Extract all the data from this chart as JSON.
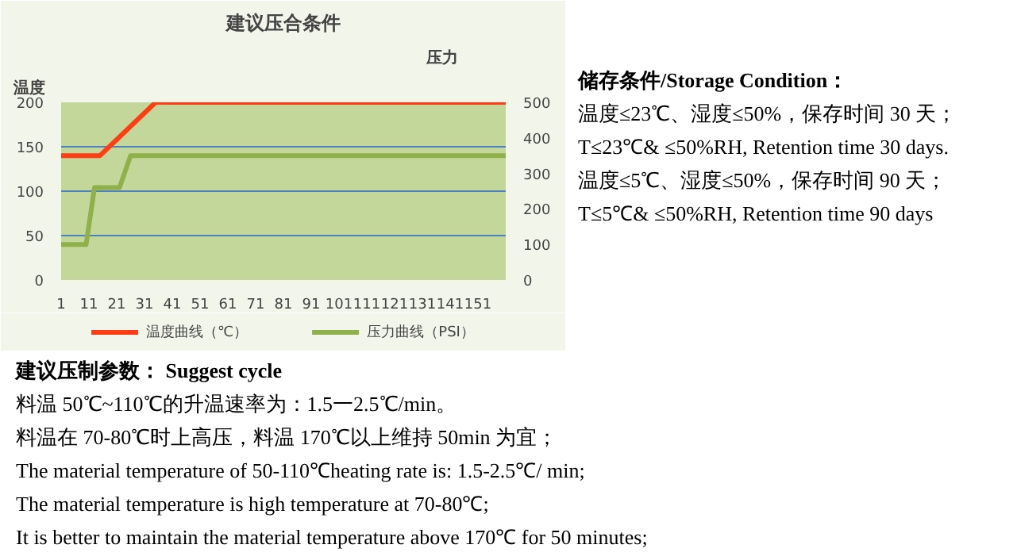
{
  "chart_data": {
    "type": "line",
    "title": "建议压合条件",
    "ylabel": "温度",
    "y2label": "压力",
    "xlim": [
      1,
      161
    ],
    "xticks": [
      1,
      11,
      21,
      31,
      41,
      51,
      61,
      71,
      81,
      91,
      101,
      111,
      121,
      131,
      141,
      151
    ],
    "ylim": [
      0,
      200
    ],
    "yticks": [
      0,
      50,
      100,
      150,
      200
    ],
    "y2lim": [
      0,
      500
    ],
    "y2ticks": [
      0,
      100,
      200,
      300,
      400,
      500
    ],
    "grid": "y",
    "legend": "bottom",
    "marker": "none",
    "line_style": "solid",
    "series": [
      {
        "name": "温度曲线（℃）",
        "color": "#ff3c14",
        "x": [
          1,
          15,
          35,
          161
        ],
        "values": [
          140,
          140,
          200,
          200
        ]
      },
      {
        "name": "压力曲线（PSI）",
        "color": "#8fb04a",
        "axis": "y2",
        "x": [
          1,
          10,
          13,
          22,
          26,
          161
        ],
        "values": [
          100,
          100,
          260,
          260,
          350,
          350
        ]
      }
    ],
    "annotations": [
      "储存条件/Storage Condition：",
      "温度≤23℃、湿度≤50%，保存时间 30 天；",
      "T≤23℃&  ≤50%RH, Retention time 30 days.",
      "温度≤5℃、湿度≤50%，保存时间 90 天；",
      "T≤5℃&  ≤50%RH, Retention time 90 days",
      "建议压制参数：  Suggest cycle",
      "料温 50℃~110℃的升温速率为：1.5一2.5℃/min。",
      "料温在 70-80℃时上高压，料温 170℃以上维持 50min 为宜；",
      "The material temperature of 50-110℃heating rate is: 1.5-2.5℃/ min;",
      "The material temperature is high temperature at 70-80℃;",
      "It is better to maintain the material temperature above 170℃  for 50 minutes;"
    ]
  }
}
